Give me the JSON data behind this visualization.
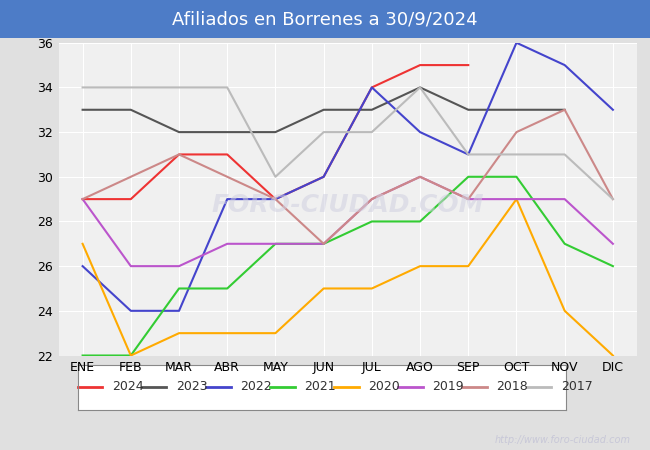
{
  "title": "Afiliados en Borrenes a 30/9/2024",
  "months": [
    "ENE",
    "FEB",
    "MAR",
    "ABR",
    "MAY",
    "JUN",
    "JUL",
    "AGO",
    "SEP",
    "OCT",
    "NOV",
    "DIC"
  ],
  "ylim": [
    22,
    36
  ],
  "yticks": [
    22,
    24,
    26,
    28,
    30,
    32,
    34,
    36
  ],
  "series": {
    "2024": {
      "color": "#ee3333",
      "data": [
        29,
        29,
        31,
        31,
        29,
        30,
        34,
        35,
        35,
        null,
        null,
        null
      ]
    },
    "2023": {
      "color": "#555555",
      "data": [
        33,
        33,
        32,
        32,
        32,
        33,
        33,
        34,
        33,
        33,
        33,
        null
      ]
    },
    "2022": {
      "color": "#4444cc",
      "data": [
        26,
        24,
        24,
        29,
        29,
        30,
        34,
        32,
        31,
        36,
        35,
        33
      ]
    },
    "2021": {
      "color": "#33cc33",
      "data": [
        22,
        22,
        25,
        25,
        27,
        27,
        28,
        28,
        30,
        30,
        27,
        26
      ]
    },
    "2020": {
      "color": "#ffaa00",
      "data": [
        27,
        22,
        23,
        23,
        23,
        25,
        25,
        26,
        26,
        29,
        24,
        22
      ]
    },
    "2019": {
      "color": "#bb55cc",
      "data": [
        29,
        26,
        26,
        27,
        27,
        27,
        29,
        30,
        29,
        29,
        29,
        27
      ]
    },
    "2018": {
      "color": "#cc8888",
      "data": [
        29,
        30,
        31,
        30,
        29,
        27,
        29,
        30,
        29,
        32,
        33,
        29
      ]
    },
    "2017": {
      "color": "#bbbbbb",
      "data": [
        34,
        34,
        34,
        34,
        30,
        32,
        32,
        34,
        31,
        31,
        31,
        29
      ]
    }
  },
  "fig_bg": "#e0e0e0",
  "plot_bg": "#f0f0f0",
  "title_bg": "#4d7cc7",
  "title_fg": "#ffffff",
  "title_fontsize": 13,
  "grid_color": "#ffffff",
  "tick_fontsize": 9,
  "watermark_text": "http://www.foro-ciudad.com",
  "watermark_color": "#c8c8d8",
  "foro_text": "FORO-CIUDAD.COM",
  "foro_color": "#d0d0e0",
  "legend_years": [
    "2024",
    "2023",
    "2022",
    "2021",
    "2020",
    "2019",
    "2018",
    "2017"
  ],
  "series_order": [
    "2024",
    "2023",
    "2022",
    "2021",
    "2020",
    "2019",
    "2018",
    "2017"
  ]
}
